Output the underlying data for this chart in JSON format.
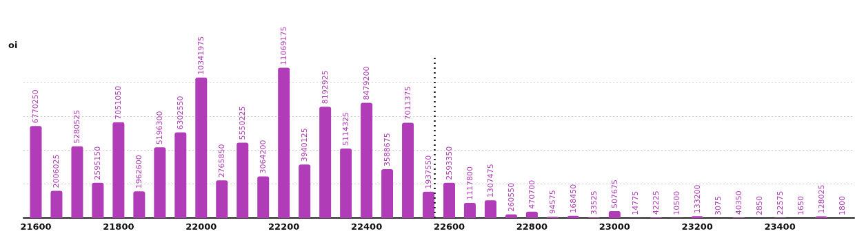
{
  "chart_data": {
    "type": "bar",
    "ylabel": "oi",
    "x": [
      21600,
      21650,
      21700,
      21750,
      21800,
      21850,
      21900,
      21950,
      22000,
      22050,
      22100,
      22150,
      22200,
      22250,
      22300,
      22350,
      22400,
      22450,
      22500,
      22550,
      22600,
      22650,
      22700,
      22750,
      22800,
      22850,
      22900,
      22950,
      23000,
      23050,
      23100,
      23150,
      23200,
      23250,
      23300,
      23350,
      23400,
      23450,
      23500,
      23550
    ],
    "values": [
      6770250,
      2006025,
      5280525,
      2595150,
      7051050,
      1962600,
      5196300,
      6302550,
      10341975,
      2765850,
      5550225,
      3064200,
      11069175,
      3940125,
      8192925,
      5114325,
      8479200,
      3588675,
      7011375,
      1937550,
      2593350,
      1117800,
      1307475,
      260550,
      470700,
      94575,
      168450,
      33525,
      507675,
      14775,
      42225,
      10500,
      133200,
      3075,
      40350,
      2850,
      22575,
      1650,
      128025,
      1800
    ],
    "color": "#b03cb8",
    "data_labels": true,
    "grid": "y",
    "xlim": [
      21570,
      23580
    ],
    "xticks": [
      21600,
      21800,
      22000,
      22200,
      22400,
      22600,
      22800,
      23000,
      23200,
      23400
    ],
    "ylim": [
      0,
      12000000
    ],
    "yticks": [
      {
        "value": 0,
        "label": null
      },
      {
        "value": 2500000,
        "label": null
      },
      {
        "value": 5000000,
        "label": null
      },
      {
        "value": 7500000,
        "label": null
      },
      {
        "value": 10000000,
        "label": null
      }
    ],
    "ref_lines": [
      {
        "axis": "x",
        "value": 22565,
        "line_style": "dotted",
        "color": "#111111"
      }
    ]
  }
}
